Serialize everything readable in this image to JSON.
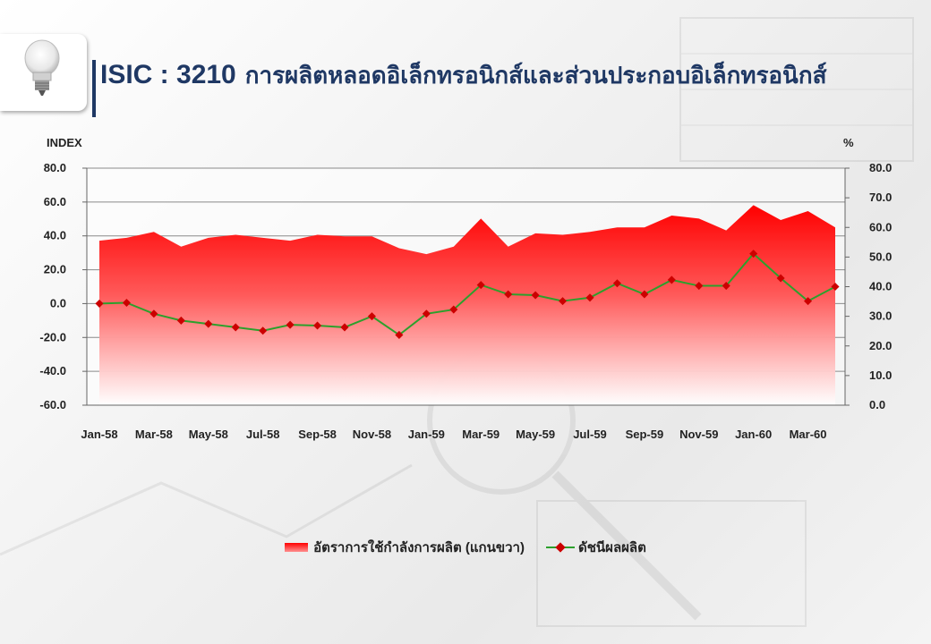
{
  "header": {
    "code": "ISIC : 3210",
    "name": "การผลิตหลอดอิเล็กทรอนิกส์และส่วนประกอบอิเล็กทรอนิกส์",
    "icon": "light-bulb-icon"
  },
  "chart_data": {
    "type": "line",
    "y_left_label": "INDEX",
    "y_right_label": "%",
    "y_left_range": [
      -60,
      80
    ],
    "y_left_ticks": [
      "80.0",
      "60.0",
      "40.0",
      "20.0",
      "0.0",
      "-20.0",
      "-40.0",
      "-60.0"
    ],
    "y_right_range": [
      0,
      80
    ],
    "y_right_ticks": [
      "80.0",
      "70.0",
      "60.0",
      "50.0",
      "40.0",
      "30.0",
      "20.0",
      "10.0",
      "0.0"
    ],
    "x": [
      "Jan-58",
      "Feb-58",
      "Mar-58",
      "Apr-58",
      "May-58",
      "Jun-58",
      "Jul-58",
      "Aug-58",
      "Sep-58",
      "Oct-58",
      "Nov-58",
      "Dec-58",
      "Jan-59",
      "Feb-59",
      "Mar-59",
      "Apr-59",
      "May-59",
      "Jun-59",
      "Jul-59",
      "Aug-59",
      "Sep-59",
      "Oct-59",
      "Nov-59",
      "Dec-59",
      "Jan-60",
      "Feb-60",
      "Mar-60",
      "Apr-60"
    ],
    "x_tick_labels": [
      "Jan-58",
      "Mar-58",
      "May-58",
      "Jul-58",
      "Sep-58",
      "Nov-58",
      "Jan-59",
      "Mar-59",
      "May-59",
      "Jul-59",
      "Sep-59",
      "Nov-59",
      "Jan-60",
      "Mar-60"
    ],
    "series": [
      {
        "name": "อัตราการใช้กำลังการผลิต (แกนขวา)",
        "type": "area",
        "axis": "right",
        "color": "#ff0000",
        "values": [
          55.5,
          56.5,
          58.5,
          53.5,
          56.5,
          57.5,
          56.5,
          55.5,
          57.5,
          57.0,
          57.0,
          53.0,
          51.0,
          53.5,
          63.0,
          53.5,
          58.0,
          57.5,
          58.5,
          60.0,
          60.0,
          64.0,
          63.0,
          59.0,
          67.5,
          62.5,
          65.5,
          60.0
        ]
      },
      {
        "name": "ดัชนีผลผลิต",
        "type": "line",
        "axis": "left",
        "color": "#2ca02c",
        "marker_color": "#cc0000",
        "values": [
          0.0,
          0.5,
          -6.0,
          -10.0,
          -12.0,
          -14.0,
          -16.0,
          -12.5,
          -13.0,
          -14.0,
          -7.5,
          -18.5,
          -6.0,
          -3.5,
          11.0,
          5.5,
          5.0,
          1.5,
          3.5,
          12.0,
          5.5,
          14.0,
          10.5,
          10.5,
          29.5,
          15.0,
          1.5,
          10.0
        ]
      }
    ],
    "legend_position": "bottom",
    "grid": true
  }
}
